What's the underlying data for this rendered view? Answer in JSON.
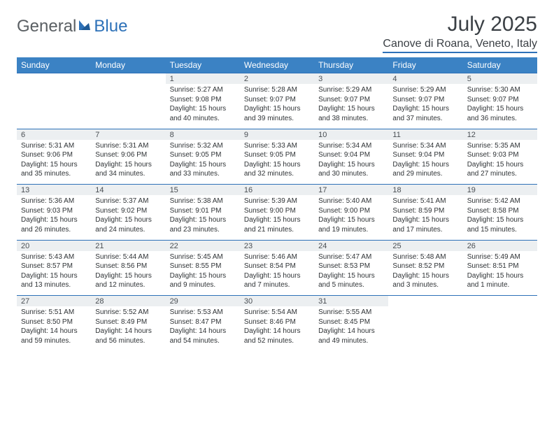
{
  "brand": {
    "part1": "General",
    "part2": "Blue"
  },
  "title": {
    "month": "July 2025",
    "location": "Canove di Roana, Veneto, Italy"
  },
  "colors": {
    "header_bg": "#3b82c4",
    "header_text": "#ffffff",
    "accent_line": "#2d71b8",
    "daynum_bg": "#eceff1",
    "body_text": "#2f3336",
    "logo_gray": "#5a5f63",
    "logo_blue": "#2d71b8",
    "page_bg": "#ffffff"
  },
  "typography": {
    "title_fontsize_pt": 22,
    "location_fontsize_pt": 12,
    "dayheader_fontsize_pt": 9,
    "cell_fontsize_pt": 7.5
  },
  "day_headers": [
    "Sunday",
    "Monday",
    "Tuesday",
    "Wednesday",
    "Thursday",
    "Friday",
    "Saturday"
  ],
  "weeks": [
    {
      "nums": [
        "",
        "",
        "1",
        "2",
        "3",
        "4",
        "5"
      ],
      "cells": [
        null,
        null,
        {
          "sunrise": "Sunrise: 5:27 AM",
          "sunset": "Sunset: 9:08 PM",
          "daylight": "Daylight: 15 hours and 40 minutes."
        },
        {
          "sunrise": "Sunrise: 5:28 AM",
          "sunset": "Sunset: 9:07 PM",
          "daylight": "Daylight: 15 hours and 39 minutes."
        },
        {
          "sunrise": "Sunrise: 5:29 AM",
          "sunset": "Sunset: 9:07 PM",
          "daylight": "Daylight: 15 hours and 38 minutes."
        },
        {
          "sunrise": "Sunrise: 5:29 AM",
          "sunset": "Sunset: 9:07 PM",
          "daylight": "Daylight: 15 hours and 37 minutes."
        },
        {
          "sunrise": "Sunrise: 5:30 AM",
          "sunset": "Sunset: 9:07 PM",
          "daylight": "Daylight: 15 hours and 36 minutes."
        }
      ]
    },
    {
      "nums": [
        "6",
        "7",
        "8",
        "9",
        "10",
        "11",
        "12"
      ],
      "cells": [
        {
          "sunrise": "Sunrise: 5:31 AM",
          "sunset": "Sunset: 9:06 PM",
          "daylight": "Daylight: 15 hours and 35 minutes."
        },
        {
          "sunrise": "Sunrise: 5:31 AM",
          "sunset": "Sunset: 9:06 PM",
          "daylight": "Daylight: 15 hours and 34 minutes."
        },
        {
          "sunrise": "Sunrise: 5:32 AM",
          "sunset": "Sunset: 9:05 PM",
          "daylight": "Daylight: 15 hours and 33 minutes."
        },
        {
          "sunrise": "Sunrise: 5:33 AM",
          "sunset": "Sunset: 9:05 PM",
          "daylight": "Daylight: 15 hours and 32 minutes."
        },
        {
          "sunrise": "Sunrise: 5:34 AM",
          "sunset": "Sunset: 9:04 PM",
          "daylight": "Daylight: 15 hours and 30 minutes."
        },
        {
          "sunrise": "Sunrise: 5:34 AM",
          "sunset": "Sunset: 9:04 PM",
          "daylight": "Daylight: 15 hours and 29 minutes."
        },
        {
          "sunrise": "Sunrise: 5:35 AM",
          "sunset": "Sunset: 9:03 PM",
          "daylight": "Daylight: 15 hours and 27 minutes."
        }
      ]
    },
    {
      "nums": [
        "13",
        "14",
        "15",
        "16",
        "17",
        "18",
        "19"
      ],
      "cells": [
        {
          "sunrise": "Sunrise: 5:36 AM",
          "sunset": "Sunset: 9:03 PM",
          "daylight": "Daylight: 15 hours and 26 minutes."
        },
        {
          "sunrise": "Sunrise: 5:37 AM",
          "sunset": "Sunset: 9:02 PM",
          "daylight": "Daylight: 15 hours and 24 minutes."
        },
        {
          "sunrise": "Sunrise: 5:38 AM",
          "sunset": "Sunset: 9:01 PM",
          "daylight": "Daylight: 15 hours and 23 minutes."
        },
        {
          "sunrise": "Sunrise: 5:39 AM",
          "sunset": "Sunset: 9:00 PM",
          "daylight": "Daylight: 15 hours and 21 minutes."
        },
        {
          "sunrise": "Sunrise: 5:40 AM",
          "sunset": "Sunset: 9:00 PM",
          "daylight": "Daylight: 15 hours and 19 minutes."
        },
        {
          "sunrise": "Sunrise: 5:41 AM",
          "sunset": "Sunset: 8:59 PM",
          "daylight": "Daylight: 15 hours and 17 minutes."
        },
        {
          "sunrise": "Sunrise: 5:42 AM",
          "sunset": "Sunset: 8:58 PM",
          "daylight": "Daylight: 15 hours and 15 minutes."
        }
      ]
    },
    {
      "nums": [
        "20",
        "21",
        "22",
        "23",
        "24",
        "25",
        "26"
      ],
      "cells": [
        {
          "sunrise": "Sunrise: 5:43 AM",
          "sunset": "Sunset: 8:57 PM",
          "daylight": "Daylight: 15 hours and 13 minutes."
        },
        {
          "sunrise": "Sunrise: 5:44 AM",
          "sunset": "Sunset: 8:56 PM",
          "daylight": "Daylight: 15 hours and 12 minutes."
        },
        {
          "sunrise": "Sunrise: 5:45 AM",
          "sunset": "Sunset: 8:55 PM",
          "daylight": "Daylight: 15 hours and 9 minutes."
        },
        {
          "sunrise": "Sunrise: 5:46 AM",
          "sunset": "Sunset: 8:54 PM",
          "daylight": "Daylight: 15 hours and 7 minutes."
        },
        {
          "sunrise": "Sunrise: 5:47 AM",
          "sunset": "Sunset: 8:53 PM",
          "daylight": "Daylight: 15 hours and 5 minutes."
        },
        {
          "sunrise": "Sunrise: 5:48 AM",
          "sunset": "Sunset: 8:52 PM",
          "daylight": "Daylight: 15 hours and 3 minutes."
        },
        {
          "sunrise": "Sunrise: 5:49 AM",
          "sunset": "Sunset: 8:51 PM",
          "daylight": "Daylight: 15 hours and 1 minute."
        }
      ]
    },
    {
      "nums": [
        "27",
        "28",
        "29",
        "30",
        "31",
        "",
        ""
      ],
      "cells": [
        {
          "sunrise": "Sunrise: 5:51 AM",
          "sunset": "Sunset: 8:50 PM",
          "daylight": "Daylight: 14 hours and 59 minutes."
        },
        {
          "sunrise": "Sunrise: 5:52 AM",
          "sunset": "Sunset: 8:49 PM",
          "daylight": "Daylight: 14 hours and 56 minutes."
        },
        {
          "sunrise": "Sunrise: 5:53 AM",
          "sunset": "Sunset: 8:47 PM",
          "daylight": "Daylight: 14 hours and 54 minutes."
        },
        {
          "sunrise": "Sunrise: 5:54 AM",
          "sunset": "Sunset: 8:46 PM",
          "daylight": "Daylight: 14 hours and 52 minutes."
        },
        {
          "sunrise": "Sunrise: 5:55 AM",
          "sunset": "Sunset: 8:45 PM",
          "daylight": "Daylight: 14 hours and 49 minutes."
        },
        null,
        null
      ]
    }
  ]
}
